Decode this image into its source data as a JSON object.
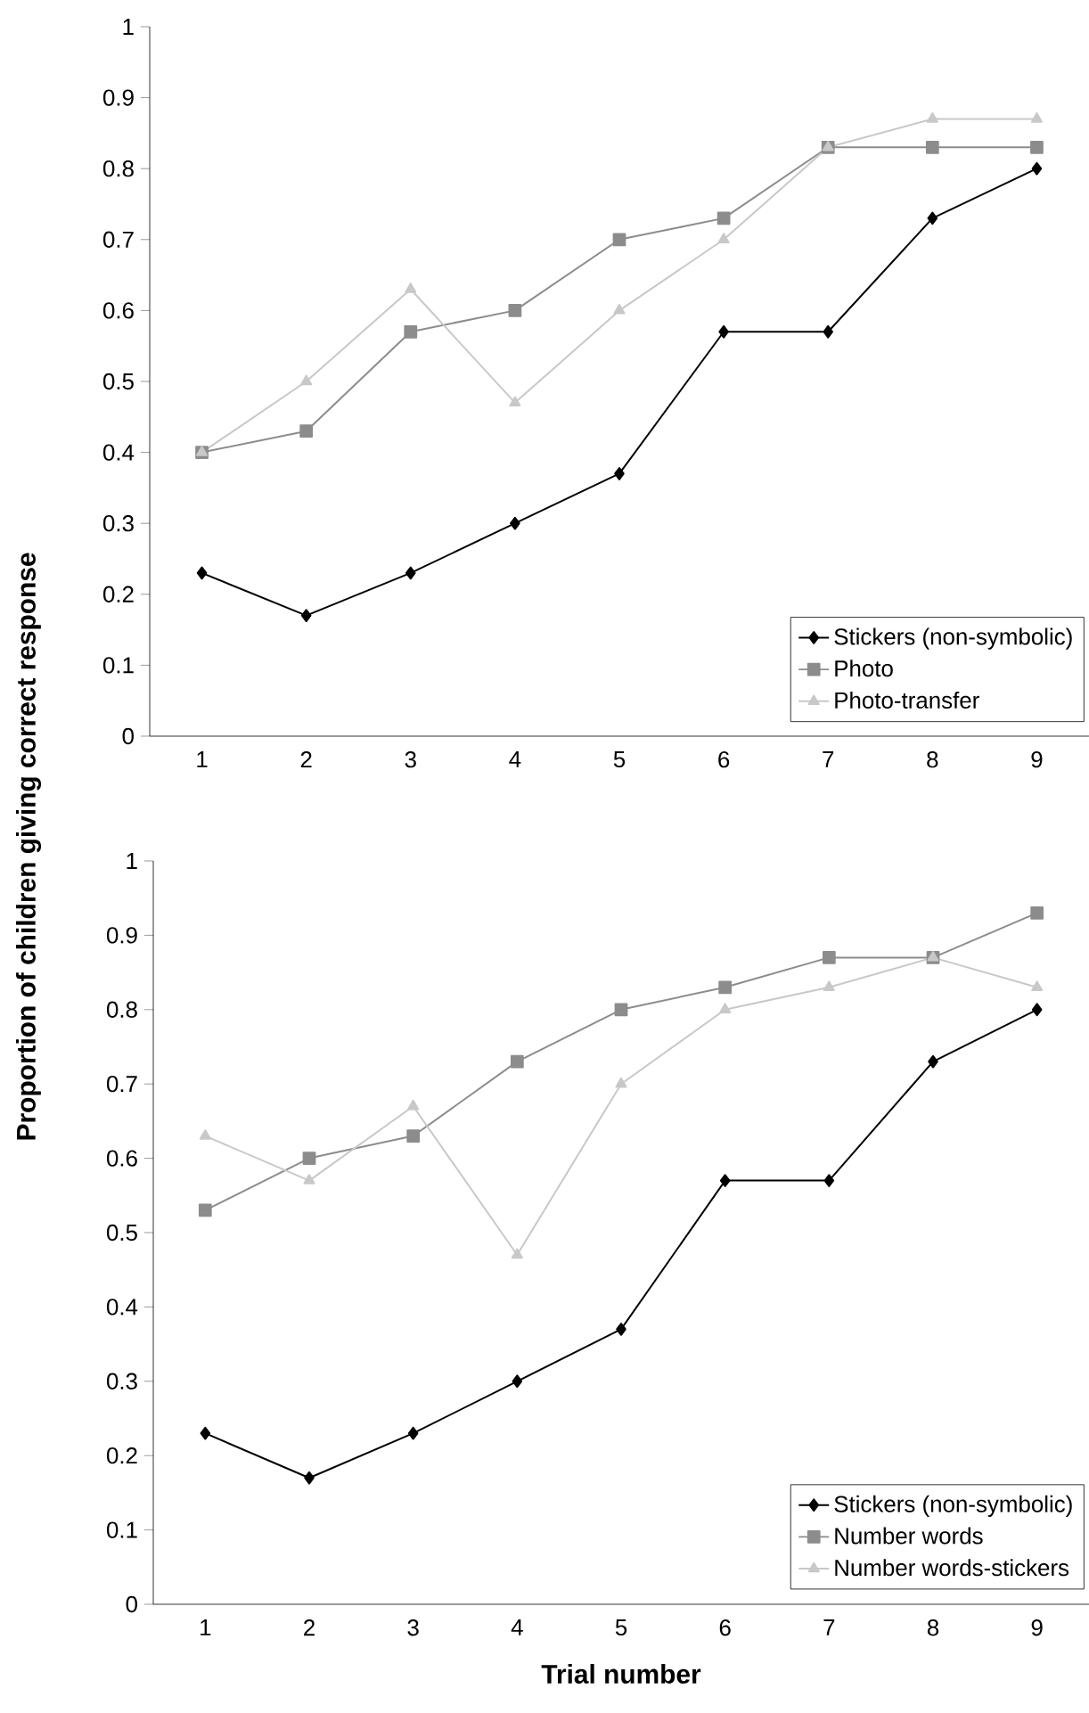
{
  "chart_data": [
    {
      "type": "line",
      "ylabel": "Proportion of children giving correct response",
      "categories": [
        "1",
        "2",
        "3",
        "4",
        "5",
        "6",
        "7",
        "8",
        "9"
      ],
      "series": [
        {
          "name": "Stickers (non-symbolic)",
          "color": "#000000",
          "marker": "diamond",
          "values": [
            0.23,
            0.17,
            0.23,
            0.3,
            0.37,
            0.57,
            0.57,
            0.73,
            0.8
          ]
        },
        {
          "name": "Photo",
          "color": "#8c8c8c",
          "marker": "square",
          "values": [
            0.4,
            0.43,
            0.57,
            0.6,
            0.7,
            0.73,
            0.83,
            0.83,
            0.83
          ]
        },
        {
          "name": "Photo-transfer",
          "color": "#c8c8c8",
          "marker": "triangle",
          "values": [
            0.4,
            0.5,
            0.63,
            0.47,
            0.6,
            0.7,
            0.83,
            0.87,
            0.87
          ]
        }
      ],
      "ylim": [
        0,
        1
      ],
      "yticks": [
        0,
        0.1,
        0.2,
        0.3,
        0.4,
        0.5,
        0.6,
        0.7,
        0.8,
        0.9,
        1
      ],
      "grid": false,
      "legend": "bottom right"
    },
    {
      "type": "line",
      "xlabel": "Trial number",
      "categories": [
        "1",
        "2",
        "3",
        "4",
        "5",
        "6",
        "7",
        "8",
        "9"
      ],
      "series": [
        {
          "name": "Stickers (non-symbolic)",
          "color": "#000000",
          "marker": "diamond",
          "values": [
            0.23,
            0.17,
            0.23,
            0.3,
            0.37,
            0.57,
            0.57,
            0.73,
            0.8
          ]
        },
        {
          "name": "Number words",
          "color": "#8c8c8c",
          "marker": "square",
          "values": [
            0.53,
            0.6,
            0.63,
            0.73,
            0.8,
            0.83,
            0.87,
            0.87,
            0.93
          ]
        },
        {
          "name": "Number words-stickers",
          "color": "#c8c8c8",
          "marker": "triangle",
          "values": [
            0.63,
            0.57,
            0.67,
            0.47,
            0.7,
            0.8,
            0.83,
            0.87,
            0.83
          ]
        }
      ],
      "ylim": [
        0,
        1
      ],
      "yticks": [
        0,
        0.1,
        0.2,
        0.3,
        0.4,
        0.5,
        0.6,
        0.7,
        0.8,
        0.9,
        1
      ],
      "grid": false,
      "legend": "bottom right"
    }
  ]
}
